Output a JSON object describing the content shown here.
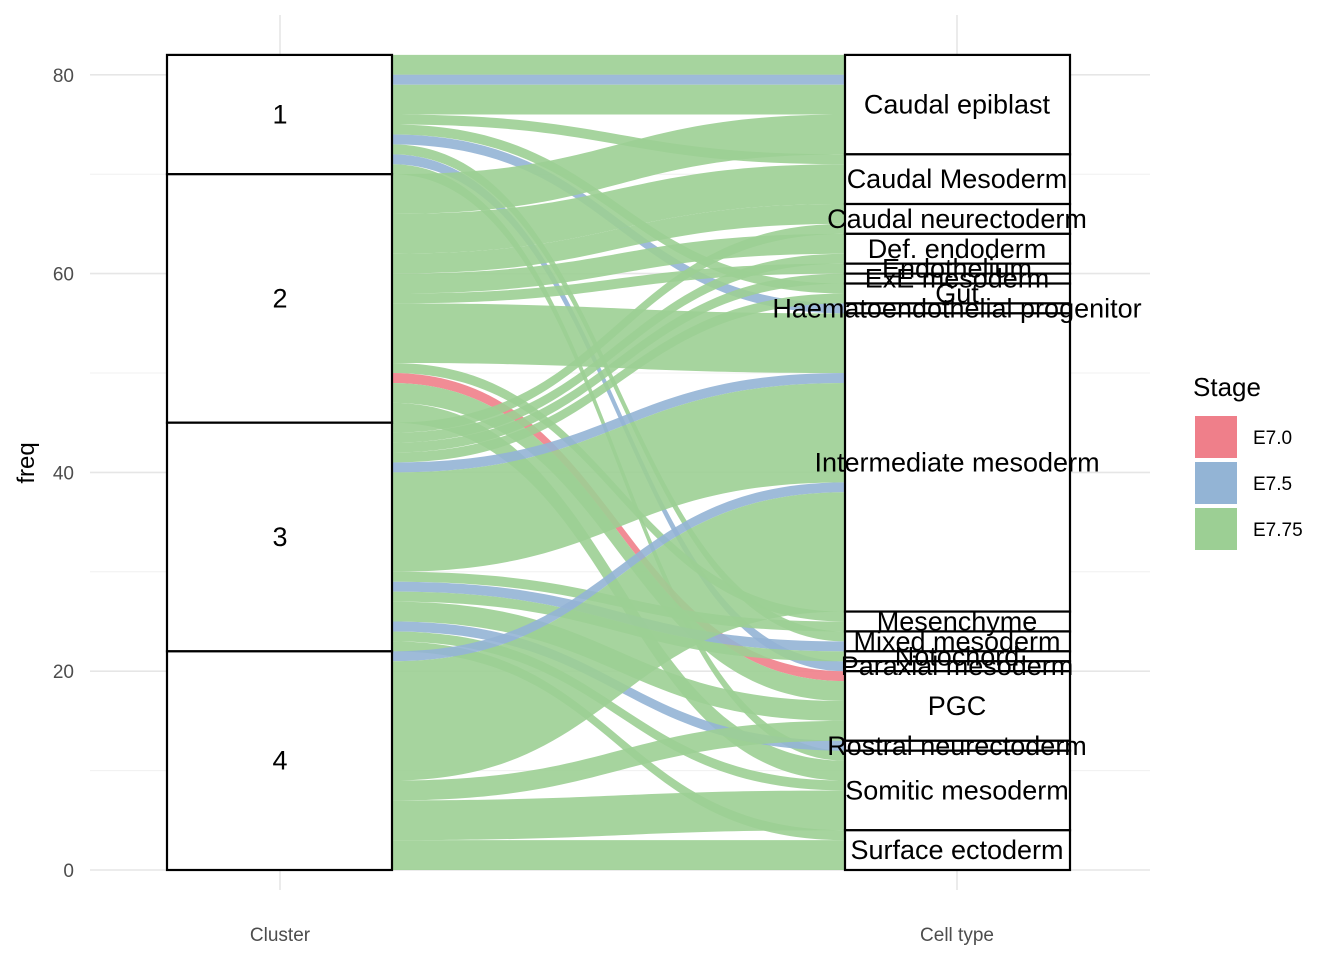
{
  "chart_data": {
    "type": "alluvial",
    "ylabel": "freq",
    "yticks": [
      0,
      20,
      40,
      60,
      80
    ],
    "ylim": [
      0,
      82
    ],
    "axes": [
      "Cluster",
      "Cell type"
    ],
    "legend": {
      "title": "Stage",
      "placement": "right",
      "items": [
        {
          "label": "E7.0",
          "color": "#EF7F8A"
        },
        {
          "label": "E7.5",
          "color": "#93B4D5"
        },
        {
          "label": "E7.75",
          "color": "#9CCF94"
        }
      ]
    },
    "clusters": [
      {
        "label": "1",
        "value": 12
      },
      {
        "label": "2",
        "value": 25
      },
      {
        "label": "3",
        "value": 23
      },
      {
        "label": "4",
        "value": 22
      }
    ],
    "cell_types": [
      {
        "label": "Caudal epiblast",
        "value": 10
      },
      {
        "label": "Caudal Mesoderm",
        "value": 5
      },
      {
        "label": "Caudal neurectoderm",
        "value": 3
      },
      {
        "label": "Def. endoderm",
        "value": 3
      },
      {
        "label": "Endothelium",
        "value": 1
      },
      {
        "label": "ExE mesoderm",
        "value": 1
      },
      {
        "label": "Gut",
        "value": 2
      },
      {
        "label": "Haematoendothelial progenitor",
        "value": 1
      },
      {
        "label": "Intermediate mesoderm",
        "value": 30
      },
      {
        "label": "Mesenchyme",
        "value": 2
      },
      {
        "label": "Mixed mesoderm",
        "value": 2
      },
      {
        "label": "Notochord",
        "value": 1
      },
      {
        "label": "Paraxial mesoderm",
        "value": 1
      },
      {
        "label": "PGC",
        "value": 7
      },
      {
        "label": "Rostral neurectoderm",
        "value": 1
      },
      {
        "label": "Somitic mesoderm",
        "value": 8
      },
      {
        "label": "Surface ectoderm",
        "value": 4
      }
    ],
    "flows": [
      {
        "cluster": "1",
        "cell_type": "Caudal epiblast",
        "stage": "E7.75",
        "value": 2
      },
      {
        "cluster": "1",
        "cell_type": "Caudal epiblast",
        "stage": "E7.5",
        "value": 1
      },
      {
        "cluster": "1",
        "cell_type": "Caudal epiblast",
        "stage": "E7.75",
        "value": 3
      },
      {
        "cluster": "1",
        "cell_type": "Caudal Mesoderm",
        "stage": "E7.75",
        "value": 1
      },
      {
        "cluster": "1",
        "cell_type": "Gut",
        "stage": "E7.75",
        "value": 1
      },
      {
        "cluster": "1",
        "cell_type": "Haematoendothelial progenitor",
        "stage": "E7.5",
        "value": 1
      },
      {
        "cluster": "1",
        "cell_type": "Mixed mesoderm",
        "stage": "E7.75",
        "value": 1
      },
      {
        "cluster": "1",
        "cell_type": "Paraxial mesoderm",
        "stage": "E7.5",
        "value": 1
      },
      {
        "cluster": "1",
        "cell_type": "Somitic mesoderm",
        "stage": "E7.75",
        "value": 1
      },
      {
        "cluster": "2",
        "cell_type": "Caudal epiblast",
        "stage": "E7.75",
        "value": 4
      },
      {
        "cluster": "2",
        "cell_type": "Caudal Mesoderm",
        "stage": "E7.75",
        "value": 4
      },
      {
        "cluster": "2",
        "cell_type": "Caudal neurectoderm",
        "stage": "E7.75",
        "value": 2
      },
      {
        "cluster": "2",
        "cell_type": "Def. endoderm",
        "stage": "E7.75",
        "value": 2
      },
      {
        "cluster": "2",
        "cell_type": "Endothelium",
        "stage": "E7.75",
        "value": 1
      },
      {
        "cluster": "2",
        "cell_type": "Intermediate mesoderm",
        "stage": "E7.75",
        "value": 6
      },
      {
        "cluster": "2",
        "cell_type": "Mesenchyme",
        "stage": "E7.75",
        "value": 1
      },
      {
        "cluster": "2",
        "cell_type": "PGC",
        "stage": "E7.0",
        "value": 1
      },
      {
        "cluster": "2",
        "cell_type": "PGC",
        "stage": "E7.75",
        "value": 2
      },
      {
        "cluster": "2",
        "cell_type": "Somitic mesoderm",
        "stage": "E7.75",
        "value": 2
      },
      {
        "cluster": "3",
        "cell_type": "Caudal neurectoderm",
        "stage": "E7.75",
        "value": 1
      },
      {
        "cluster": "3",
        "cell_type": "Def. endoderm",
        "stage": "E7.75",
        "value": 1
      },
      {
        "cluster": "3",
        "cell_type": "ExE mesoderm",
        "stage": "E7.75",
        "value": 1
      },
      {
        "cluster": "3",
        "cell_type": "Gut",
        "stage": "E7.75",
        "value": 1
      },
      {
        "cluster": "3",
        "cell_type": "Intermediate mesoderm",
        "stage": "E7.5",
        "value": 1
      },
      {
        "cluster": "3",
        "cell_type": "Intermediate mesoderm",
        "stage": "E7.75",
        "value": 10
      },
      {
        "cluster": "3",
        "cell_type": "Mesenchyme",
        "stage": "E7.75",
        "value": 1
      },
      {
        "cluster": "3",
        "cell_type": "Mixed mesoderm",
        "stage": "E7.5",
        "value": 1
      },
      {
        "cluster": "3",
        "cell_type": "Notochord",
        "stage": "E7.75",
        "value": 1
      },
      {
        "cluster": "3",
        "cell_type": "PGC",
        "stage": "E7.75",
        "value": 2
      },
      {
        "cluster": "3",
        "cell_type": "Rostral neurectoderm",
        "stage": "E7.5",
        "value": 1
      },
      {
        "cluster": "3",
        "cell_type": "Somitic mesoderm",
        "stage": "E7.75",
        "value": 1
      },
      {
        "cluster": "3",
        "cell_type": "Surface ectoderm",
        "stage": "E7.75",
        "value": 1
      },
      {
        "cluster": "4",
        "cell_type": "Intermediate mesoderm",
        "stage": "E7.5",
        "value": 1
      },
      {
        "cluster": "4",
        "cell_type": "Intermediate mesoderm",
        "stage": "E7.75",
        "value": 12
      },
      {
        "cluster": "4",
        "cell_type": "PGC",
        "stage": "E7.75",
        "value": 2
      },
      {
        "cluster": "4",
        "cell_type": "Somitic mesoderm",
        "stage": "E7.75",
        "value": 4
      },
      {
        "cluster": "4",
        "cell_type": "Surface ectoderm",
        "stage": "E7.75",
        "value": 3
      }
    ]
  }
}
